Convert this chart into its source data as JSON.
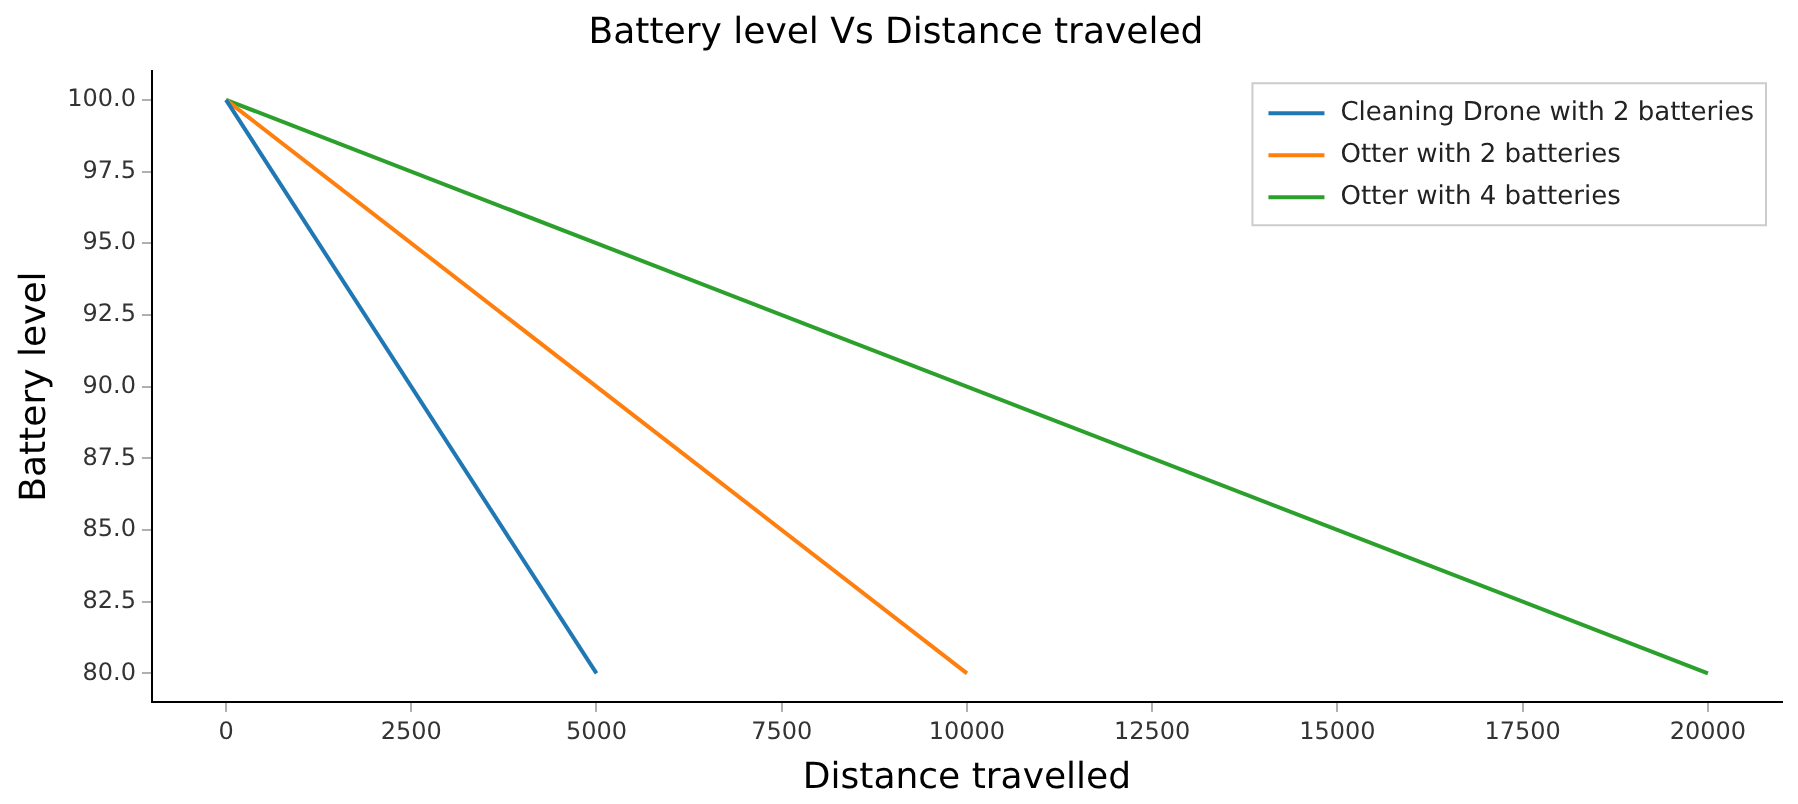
{
  "chart_data": {
    "type": "line",
    "title": "Battery level Vs Distance traveled",
    "xlabel": "Distance travelled",
    "ylabel": "Battery level",
    "series": [
      {
        "name": "Cleaning Drone with 2 batteries",
        "color": "#1f77b4",
        "x": [
          0,
          5000
        ],
        "values": [
          100,
          80
        ]
      },
      {
        "name": "Otter with 2 batteries",
        "color": "#ff7f0e",
        "x": [
          0,
          10000
        ],
        "values": [
          100,
          80
        ]
      },
      {
        "name": "Otter with 4 batteries",
        "color": "#2ca02c",
        "x": [
          0,
          20000
        ],
        "values": [
          100,
          80
        ]
      }
    ],
    "xlim": [
      -1000,
      21000
    ],
    "xticks": [
      0,
      2500,
      5000,
      7500,
      10000,
      12500,
      15000,
      17500,
      20000
    ],
    "ylim": [
      79,
      101
    ],
    "yticks": [
      {
        "value": 80,
        "label": "80.0"
      },
      {
        "value": 82.5,
        "label": "82.5"
      },
      {
        "value": 85,
        "label": "85.0"
      },
      {
        "value": 87.5,
        "label": "87.5"
      },
      {
        "value": 90,
        "label": "90.0"
      },
      {
        "value": 92.5,
        "label": "92.5"
      },
      {
        "value": 95,
        "label": "95.0"
      },
      {
        "value": 97.5,
        "label": "97.5"
      },
      {
        "value": 100,
        "label": "100.0"
      }
    ],
    "grid": false,
    "legend": "top right",
    "marker": "none",
    "line_style": "solid"
  }
}
